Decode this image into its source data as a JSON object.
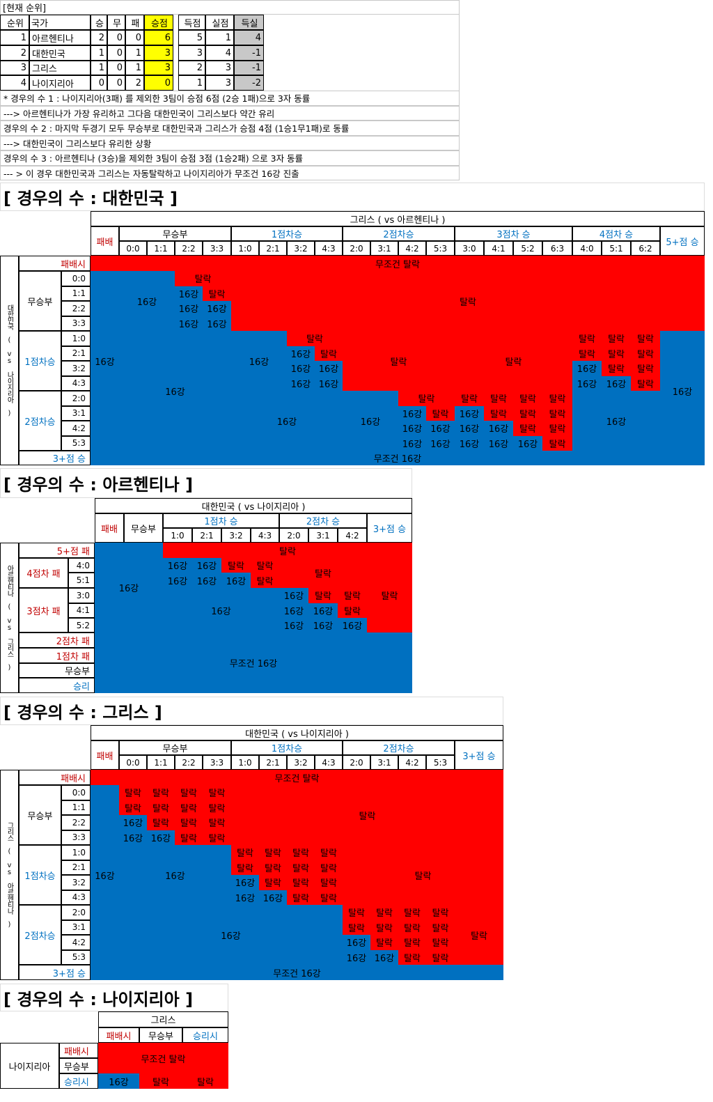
{
  "standings": {
    "title": "[현재 순위]",
    "columns": [
      "순위",
      "국가",
      "승",
      "무",
      "패",
      "승점",
      "득점",
      "실점",
      "득실"
    ],
    "rows": [
      [
        1,
        "아르헨티나",
        2,
        0,
        0,
        6,
        5,
        1,
        4
      ],
      [
        2,
        "대한민국",
        1,
        0,
        1,
        3,
        3,
        4,
        -1
      ],
      [
        3,
        "그리스",
        1,
        0,
        1,
        3,
        2,
        3,
        -1
      ],
      [
        4,
        "나이지리아",
        0,
        0,
        2,
        0,
        1,
        3,
        -2
      ]
    ],
    "notes": [
      "* 경우의 수 1 : 나이지리아(3패) 를 제외한 3팀이 승점 6점 (2승 1패)으로 3자 동률",
      "---> 아르헨티나가 가장 유리하고 그다음 대한민국이 그리스보다 약간 유리",
      "경우의 수 2 : 마지막 두경기 모두 무승부로 대한민국과 그리스가 승점 4점 (1승1무1패)로 동률",
      "---> 대한민국이 그리스보다 유리한 상황",
      "경우의 수 3 : 아르헨티나 (3승)을 제외한 3팀이 승점 3점 (1승2패) 으로 3자 동률",
      "--- > 이 경우 대한민국과 그리스는 자동탈락하고 나이지리아가 무조건 16강 진출"
    ]
  },
  "korea": {
    "title": "[ 경우의 수 : 대한민국 ]",
    "top_header": "그리스 ( vs 아르헨티나 )",
    "side_label": "대한민국 ( vs 나이지리아 )",
    "col_groups": [
      {
        "label": "패배"
      },
      {
        "label": "무승부",
        "scores": [
          "0:0",
          "1:1",
          "2:2",
          "3:3"
        ]
      },
      {
        "label": "1점차승",
        "scores": [
          "1:0",
          "2:1",
          "3:2",
          "4:3"
        ]
      },
      {
        "label": "2점차승",
        "scores": [
          "2:0",
          "3:1",
          "4:2",
          "5:3"
        ]
      },
      {
        "label": "3점차 승",
        "scores": [
          "3:0",
          "4:1",
          "5:2",
          "6:3"
        ]
      },
      {
        "label": "4점차 승",
        "scores": [
          "4:0",
          "5:1",
          "6:2"
        ]
      },
      {
        "label": "5+점 승"
      }
    ],
    "row_groups": [
      {
        "label": "패배시"
      },
      {
        "label": "무승부",
        "scores": [
          "0:0",
          "1:1",
          "2:2",
          "3:3"
        ]
      },
      {
        "label": "1점차승",
        "scores": [
          "1:0",
          "2:1",
          "3:2",
          "4:3"
        ]
      },
      {
        "label": "2점차승",
        "scores": [
          "2:0",
          "3:1",
          "4:2",
          "5:3"
        ]
      },
      {
        "label": "3+점 승"
      }
    ],
    "blocks": [
      "무조건 탈락",
      "무조건 16강",
      "16강",
      "16강",
      "탈락",
      "16강",
      "탈락",
      "16강",
      "16강",
      "16강",
      "16강",
      "탈락",
      "16강",
      "16강",
      "탈락",
      "16강",
      "탈락",
      "16강",
      "16강",
      "16강",
      "16강",
      "탈락",
      "탈락",
      "탈락",
      "탈락",
      "탈락",
      "탈락",
      "탈락",
      "탈락",
      "16강",
      "탈락",
      "탈락",
      "16강",
      "16강",
      "탈락",
      "16강",
      "16강",
      "16강",
      "탈락",
      "16강",
      "탈락",
      "16강",
      "16강",
      "16강",
      "16강",
      "탈락",
      "탈락",
      "탈락",
      "탈락",
      "16강",
      "탈락",
      "탈락",
      "탈락",
      "16강",
      "16강",
      "탈락",
      "탈락",
      "16강",
      "16강",
      "16강",
      "탈락",
      "16강"
    ]
  },
  "argentina": {
    "title": "[ 경우의 수 : 아르헨티나 ]",
    "top_header": "대한민국 ( vs 나이지리아 )",
    "side_label": "아르헨티나 ( vs 그리스 )",
    "col_groups": [
      {
        "label": "패배"
      },
      {
        "label": "무승부"
      },
      {
        "label": "1점차 승",
        "scores": [
          "1:0",
          "2:1",
          "3:2",
          "4:3"
        ]
      },
      {
        "label": "2점차 승",
        "scores": [
          "2:0",
          "3:1",
          "4:2"
        ]
      },
      {
        "label": "3+점 승"
      }
    ],
    "row_groups": [
      {
        "label": "5+점 패"
      },
      {
        "label": "4점차 패",
        "scores": [
          "4:0",
          "5:1"
        ]
      },
      {
        "label": "3점차 패",
        "scores": [
          "3:0",
          "4:1",
          "5:2"
        ]
      },
      {
        "label": "2점차 패"
      },
      {
        "label": "1점차 패"
      },
      {
        "label": "무승부"
      },
      {
        "label": "승리"
      }
    ],
    "blocks": [
      "16강",
      "탈락",
      "16강",
      "16강",
      "탈락",
      "탈락",
      "16강",
      "16강",
      "16강",
      "탈락",
      "탈락",
      "탈락",
      "16강",
      "16강",
      "탈락",
      "탈락",
      "16강",
      "16강",
      "탈락",
      "16강",
      "16강",
      "16강",
      "무조건 16강"
    ]
  },
  "greece": {
    "title": "[ 경우의 수 : 그리스 ]",
    "top_header": "대한민국 ( vs 나이지리아 )",
    "side_label": "그리스 ( vs 아르헨티나 )",
    "col_groups": [
      {
        "label": "패배"
      },
      {
        "label": "무승부",
        "scores": [
          "0:0",
          "1:1",
          "2:2",
          "3:3"
        ]
      },
      {
        "label": "1점차승",
        "scores": [
          "1:0",
          "2:1",
          "3:2",
          "4:3"
        ]
      },
      {
        "label": "2점차승",
        "scores": [
          "2:0",
          "3:1",
          "4:2",
          "5:3"
        ]
      },
      {
        "label": "3+점 승"
      }
    ],
    "row_groups": [
      {
        "label": "패배시"
      },
      {
        "label": "무승부",
        "scores": [
          "0:0",
          "1:1",
          "2:2",
          "3:3"
        ]
      },
      {
        "label": "1점차승",
        "scores": [
          "1:0",
          "2:1",
          "3:2",
          "4:3"
        ]
      },
      {
        "label": "2점차승",
        "scores": [
          "2:0",
          "3:1",
          "4:2",
          "5:3"
        ]
      },
      {
        "label": "3+점 승"
      }
    ],
    "blocks": [
      "무조건 탈락",
      "무조건 16강",
      "16강",
      "탈락",
      "탈락",
      "탈락",
      "탈락",
      "탈락",
      "탈락",
      "탈락",
      "탈락",
      "16강",
      "탈락",
      "탈락",
      "탈락",
      "16강",
      "16강",
      "탈락",
      "탈락",
      "탈락",
      "16강",
      "탈락",
      "탈락",
      "탈락",
      "탈락",
      "탈락",
      "탈락",
      "탈락",
      "탈락",
      "16강",
      "탈락",
      "탈락",
      "탈락",
      "16강",
      "16강",
      "탈락",
      "탈락",
      "탈락",
      "16강",
      "탈락",
      "탈락",
      "탈락",
      "탈락",
      "탈락",
      "탈락",
      "탈락",
      "탈락",
      "16강",
      "탈락",
      "탈락",
      "탈락",
      "16강",
      "16강",
      "탈락",
      "탈락",
      "탈락"
    ]
  },
  "nigeria": {
    "title": "[ 경우의 수 : 나이지리아 ]",
    "top_header": "그리스",
    "side_label": "나이지리아",
    "col_groups": [
      {
        "label": "패배시"
      },
      {
        "label": "무승부"
      },
      {
        "label": "승리시"
      }
    ],
    "row_groups": [
      {
        "label": "패배시"
      },
      {
        "label": "무승부"
      },
      {
        "label": "승리시"
      }
    ],
    "blocks": [
      "무조건 탈락",
      "16강",
      "탈락",
      "탈락"
    ]
  }
}
